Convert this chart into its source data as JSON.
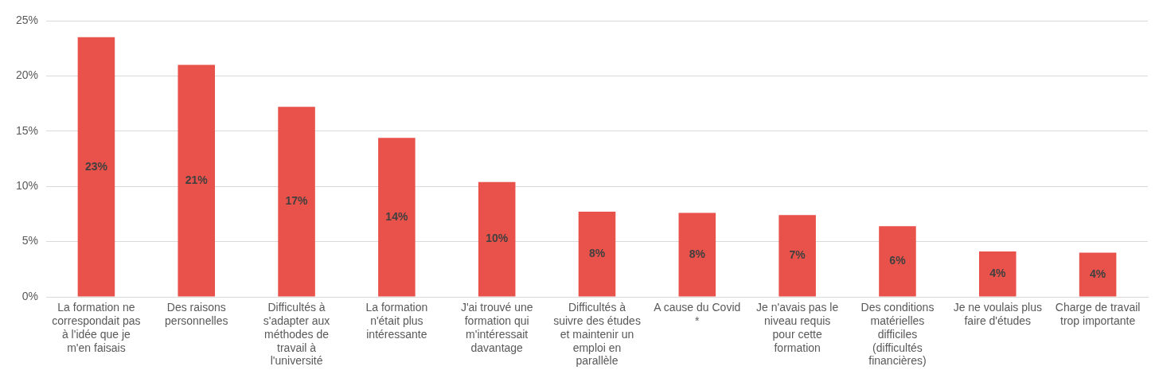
{
  "chart_data": {
    "type": "bar",
    "categories": [
      "La formation ne correspondait pas à l'idée que je m'en faisais",
      "Des raisons personnelles",
      "Difficultés à s'adapter aux méthodes de travail à l'université",
      "La formation n'était plus intéressante",
      "J'ai trouvé une formation qui m'intéressait davantage",
      "Difficultés à suivre des études et maintenir un emploi en parallèle",
      "A cause du Covid *",
      "Je n'avais pas le niveau requis pour cette formation",
      "Des conditions matérielles difficiles (difficultés financières)",
      "Je ne voulais plus faire d'études",
      "Charge de travail trop importante"
    ],
    "values": [
      23.5,
      21.0,
      17.2,
      14.4,
      10.4,
      7.7,
      7.6,
      7.4,
      6.4,
      4.1,
      4.0
    ],
    "value_labels": [
      "23%",
      "21%",
      "17%",
      "14%",
      "10%",
      "8%",
      "8%",
      "7%",
      "6%",
      "4%",
      "4%"
    ],
    "color": "#e9524a",
    "ylim": [
      0,
      25
    ],
    "yticks": [
      {
        "value": 0,
        "label": "0%"
      },
      {
        "value": 5,
        "label": "5%"
      },
      {
        "value": 10,
        "label": "10%"
      },
      {
        "value": 15,
        "label": "15%"
      },
      {
        "value": 20,
        "label": "20%"
      },
      {
        "value": 25,
        "label": "25%"
      }
    ],
    "grid": "y"
  }
}
